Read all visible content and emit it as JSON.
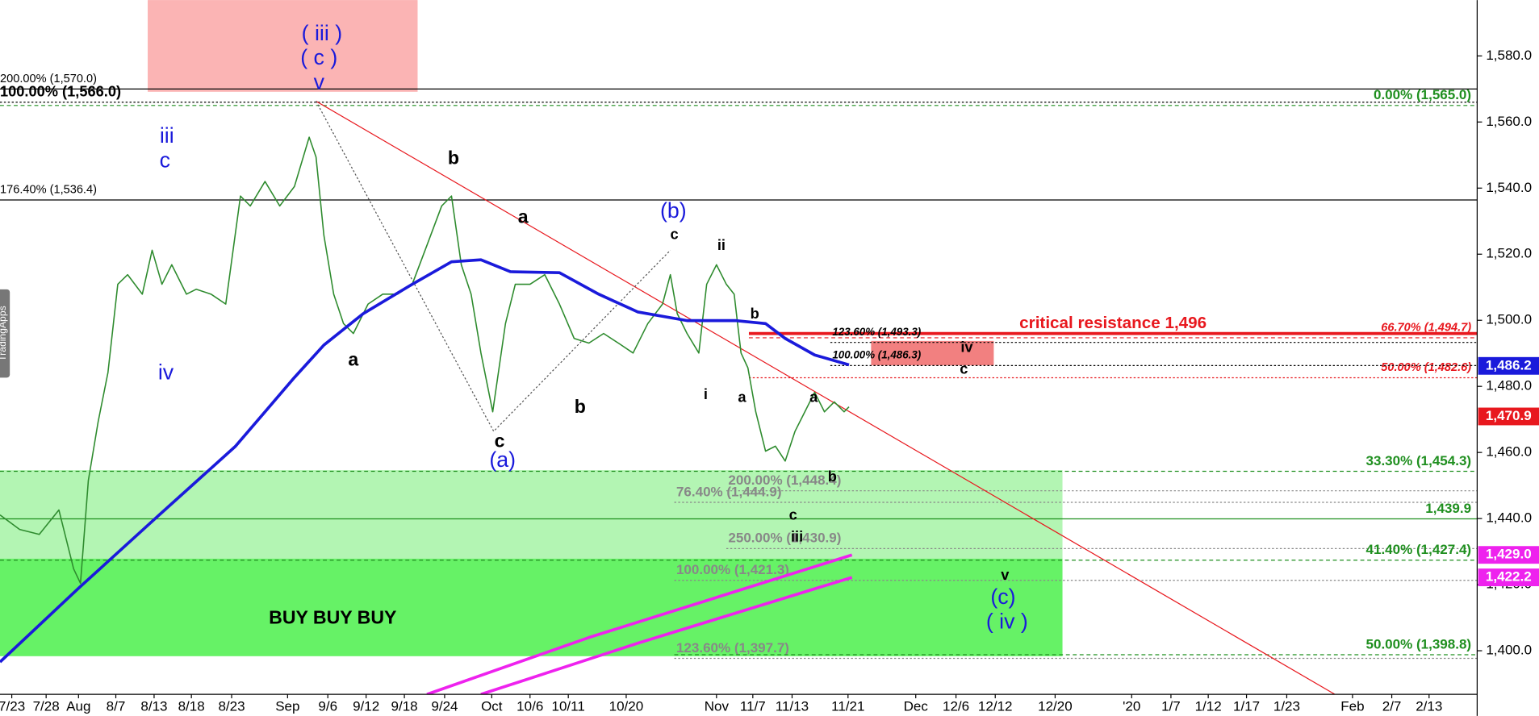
{
  "chart_data": {
    "type": "line",
    "watermark": "TradingApps",
    "xlim": [
      0,
      150.5
    ],
    "ylim": [
      1386.8,
      1596.9
    ],
    "yticks": [
      {
        "value": 1400,
        "label": "1,400.0"
      },
      {
        "value": 1420,
        "label": "1,420.0"
      },
      {
        "value": 1440,
        "label": "1,440.0"
      },
      {
        "value": 1460,
        "label": "1,460.0"
      },
      {
        "value": 1480,
        "label": "1,480.0"
      },
      {
        "value": 1500,
        "label": "1,500.0"
      },
      {
        "value": 1520,
        "label": "1,520.0"
      },
      {
        "value": 1540,
        "label": "1,540.0"
      },
      {
        "value": 1560,
        "label": "1,560.0"
      },
      {
        "value": 1580,
        "label": "1,580.0"
      }
    ],
    "xticks": [
      {
        "value": 1.2,
        "label": "7/23"
      },
      {
        "value": 4.7,
        "label": "7/28"
      },
      {
        "value": 8.0,
        "label": "Aug"
      },
      {
        "value": 11.8,
        "label": "8/7"
      },
      {
        "value": 15.7,
        "label": "8/13"
      },
      {
        "value": 19.5,
        "label": "8/18"
      },
      {
        "value": 23.6,
        "label": "8/23"
      },
      {
        "value": 29.3,
        "label": "Sep"
      },
      {
        "value": 33.4,
        "label": "9/6"
      },
      {
        "value": 37.3,
        "label": "9/12"
      },
      {
        "value": 41.2,
        "label": "9/18"
      },
      {
        "value": 45.3,
        "label": "9/24"
      },
      {
        "value": 50.1,
        "label": "Oct"
      },
      {
        "value": 54.0,
        "label": "10/6"
      },
      {
        "value": 57.9,
        "label": "10/11"
      },
      {
        "value": 63.8,
        "label": "10/20"
      },
      {
        "value": 73.0,
        "label": "Nov"
      },
      {
        "value": 76.7,
        "label": "11/7"
      },
      {
        "value": 80.7,
        "label": "11/13"
      },
      {
        "value": 86.4,
        "label": "11/21"
      },
      {
        "value": 93.3,
        "label": "Dec"
      },
      {
        "value": 97.4,
        "label": "12/6"
      },
      {
        "value": 101.4,
        "label": "12/12"
      },
      {
        "value": 107.5,
        "label": "12/20"
      },
      {
        "value": 115.3,
        "label": "'20"
      },
      {
        "value": 119.3,
        "label": "1/7"
      },
      {
        "value": 123.1,
        "label": "1/12"
      },
      {
        "value": 127.0,
        "label": "1/17"
      },
      {
        "value": 131.1,
        "label": "1/23"
      },
      {
        "value": 137.8,
        "label": "Feb"
      },
      {
        "value": 141.8,
        "label": "2/7"
      },
      {
        "value": 145.6,
        "label": "2/13"
      }
    ],
    "boxes": [
      {
        "x": [
          15.1,
          42.5
        ],
        "y": [
          1569.3,
          1596.9
        ],
        "color": "#fbb4b4"
      },
      {
        "x": [
          0,
          108.2
        ],
        "y": [
          1427.7,
          1454.5
        ],
        "color": "#b3f5b3"
      },
      {
        "x": [
          0,
          108.2
        ],
        "y": [
          1398.5,
          1427.7
        ],
        "color": "#66f266"
      },
      {
        "x": [
          88.8,
          101.2
        ],
        "y": [
          1486.5,
          1493.6
        ],
        "color": "#f28080"
      }
    ],
    "levels": [
      {
        "label": "200.00% (1,570.0)",
        "value": 1570.0,
        "x": [
          0,
          150.5
        ],
        "color": "#000000",
        "line": "solid",
        "label_at": "left",
        "style": "plain"
      },
      {
        "label": "100.00% (1,566.0)",
        "value": 1566.0,
        "x": [
          0,
          150.5
        ],
        "color": "#000000",
        "line": "dotted",
        "label_at": "left",
        "style": "bold"
      },
      {
        "label": "176.40% (1,536.4)",
        "value": 1536.4,
        "x": [
          0,
          150.5
        ],
        "color": "#000000",
        "line": "solid",
        "label_at": "left",
        "style": "plain"
      },
      {
        "label": "0.00% (1,565.0)",
        "value": 1565.0,
        "x": [
          0,
          150.5
        ],
        "color": "#1f8f1f",
        "line": "dashed",
        "label_at": "right",
        "style": "fib"
      },
      {
        "label": "critical resistance 1,496",
        "value": 1496,
        "x": [
          76.3,
          150.5
        ],
        "color": "#e8181e",
        "line": "thick",
        "label_at": "center",
        "style": "critical"
      },
      {
        "label": "66.70% (1,494.7)",
        "value": 1494.7,
        "x": [
          76.3,
          150.5
        ],
        "color": "#e8181e",
        "line": "dashed",
        "label_at": "right",
        "style": "italic"
      },
      {
        "label": "50.00% (1,482.6)",
        "value": 1482.6,
        "x": [
          76.3,
          150.5
        ],
        "color": "#e8181e",
        "line": "dotted",
        "label_at": "right",
        "style": "italic"
      },
      {
        "label": "123.60% (1,493.3)",
        "value": 1493.3,
        "x": [
          84.6,
          150.5
        ],
        "color": "#000000",
        "line": "dotted",
        "label_at": "start",
        "style": "small"
      },
      {
        "label": "100.00% (1,486.3)",
        "value": 1486.3,
        "x": [
          84.6,
          150.5
        ],
        "color": "#000000",
        "line": "dotted",
        "label_at": "start",
        "style": "small"
      },
      {
        "label": "33.30% (1,454.3)",
        "value": 1454.3,
        "x": [
          0,
          150.5
        ],
        "color": "#1f8f1f",
        "line": "dashed",
        "label_at": "right",
        "style": "fib"
      },
      {
        "label": "200.00% (1,448.4)",
        "value": 1448.4,
        "x": [
          74,
          150.5
        ],
        "color": "#888888",
        "line": "dotted",
        "label_at": "start",
        "style": "mid"
      },
      {
        "label": "76.40% (1,444.9)",
        "value": 1444.9,
        "x": [
          68.7,
          150.5
        ],
        "color": "#888888",
        "line": "dotted",
        "label_at": "start",
        "style": "mid"
      },
      {
        "label": "1,439.9",
        "value": 1439.9,
        "x": [
          0,
          150.5
        ],
        "color": "#1f8f1f",
        "line": "solid",
        "label_at": "right",
        "style": "fib"
      },
      {
        "label": "250.00% (1,430.9)",
        "value": 1430.9,
        "x": [
          74,
          150.5
        ],
        "color": "#888888",
        "line": "dotted",
        "label_at": "start",
        "style": "mid"
      },
      {
        "label": "41.40% (1,427.4)",
        "value": 1427.4,
        "x": [
          0,
          150.5
        ],
        "color": "#1f8f1f",
        "line": "dashed",
        "label_at": "right",
        "style": "fib"
      },
      {
        "label": "100.00% (1,421.3)",
        "value": 1421.3,
        "x": [
          68.7,
          150.5
        ],
        "color": "#888888",
        "line": "dotted",
        "label_at": "start",
        "style": "mid"
      },
      {
        "label": "123.60% (1,397.7)",
        "value": 1397.7,
        "x": [
          68.7,
          150.5
        ],
        "color": "#888888",
        "line": "dotted",
        "label_at": "start",
        "style": "mid"
      },
      {
        "label": "50.00% (1,398.8)",
        "value": 1398.8,
        "x": [
          68.7,
          150.5
        ],
        "color": "#1f8f1f",
        "line": "dashed",
        "label_at": "right",
        "style": "fib"
      }
    ],
    "trendlines": [
      {
        "x": [
          32.2,
          136
        ],
        "y": [
          1566.3,
          1386.8
        ],
        "color": "#e8181e",
        "line": "solid"
      },
      {
        "x": [
          32.2,
          50.3,
          68.3
        ],
        "y": [
          1566.3,
          1466.4,
          1521.2
        ],
        "color": "#555555",
        "line": "dotted"
      }
    ],
    "series": [
      {
        "color": "#2e8b2e",
        "width": 1.3,
        "x": [
          0,
          2,
          4,
          6,
          7.5,
          8.2,
          9,
          10,
          11,
          12,
          13,
          14.5,
          15.5,
          16.5,
          17.5,
          19,
          20,
          21.5,
          23,
          24.5,
          25.5,
          27,
          28.5,
          30,
          31.5,
          32.2,
          33,
          34,
          35,
          36,
          37.5,
          39,
          40.5,
          42,
          43.5,
          45,
          46,
          47,
          48,
          49,
          50.2,
          51.5,
          52.5,
          54,
          55.5,
          57,
          58.5,
          60,
          61.5,
          63,
          64.5,
          66,
          67.5,
          68.3,
          69,
          70,
          71.2,
          72,
          73,
          74,
          74.8,
          75.5,
          76.2,
          77,
          78,
          79,
          80,
          81,
          82,
          83,
          84,
          85,
          86,
          86.5
        ],
        "values": [
          1441.1,
          1436.7,
          1435.2,
          1442.6,
          1424.8,
          1420.4,
          1451.5,
          1469.3,
          1484.2,
          1510.9,
          1513.8,
          1507.9,
          1521.2,
          1510.9,
          1516.8,
          1507.9,
          1509.4,
          1507.9,
          1504.9,
          1537.6,
          1534.6,
          1542.0,
          1534.6,
          1540.5,
          1555.4,
          1549.4,
          1525.7,
          1507.9,
          1499.0,
          1496.0,
          1504.9,
          1507.9,
          1507.9,
          1510.9,
          1522.7,
          1534.6,
          1537.6,
          1516.8,
          1507.9,
          1490.1,
          1472.3,
          1499.0,
          1510.9,
          1510.9,
          1513.8,
          1504.9,
          1494.5,
          1493.1,
          1496.0,
          1493.1,
          1490.1,
          1499.0,
          1504.9,
          1513.8,
          1502.0,
          1496.0,
          1490.1,
          1510.9,
          1516.8,
          1510.9,
          1507.9,
          1490.1,
          1485.6,
          1472.3,
          1460.4,
          1461.9,
          1457.4,
          1466.4,
          1472.3,
          1478.2,
          1472.3,
          1475.3,
          1472.3,
          1473.8
        ]
      },
      {
        "color": "#1a1adb",
        "width": 3,
        "x": [
          0,
          8,
          16,
          24,
          30,
          33,
          37,
          42,
          46,
          49,
          52,
          57,
          61,
          65,
          70,
          75,
          78,
          80,
          83,
          86.5
        ],
        "values": [
          1396.6,
          1418.9,
          1440.5,
          1461.9,
          1482.7,
          1492.5,
          1502.0,
          1510.9,
          1517.7,
          1518.3,
          1514.7,
          1514.4,
          1507.9,
          1502.5,
          1499.9,
          1499.9,
          1499.0,
          1494.5,
          1489.5,
          1486.5
        ]
      },
      {
        "color": "#ee22ee",
        "width": 3,
        "x": [
          43.5,
          60,
          86.8
        ],
        "values": [
          1386.8,
          1404.0,
          1429.0
        ]
      },
      {
        "color": "#ee22ee",
        "width": 3,
        "x": [
          49,
          65,
          86.8
        ],
        "values": [
          1386.8,
          1402.3,
          1422.2
        ]
      }
    ],
    "markers": [
      {
        "value": 1486.2,
        "label": "1,486.2",
        "color": "#1a1adb"
      },
      {
        "value": 1470.9,
        "label": "1,470.9",
        "color": "#e8181e"
      },
      {
        "value": 1429.0,
        "label": "1,429.0",
        "color": "#ee22ee"
      },
      {
        "value": 1422.2,
        "label": "1,422.2",
        "color": "#ee22ee"
      }
    ],
    "annotations": [
      {
        "text": "( iii )",
        "x": 32.8,
        "y": 1586.5,
        "color": "#1a1adb",
        "size": "wave"
      },
      {
        "text": "( c )",
        "x": 32.5,
        "y": 1579.1,
        "color": "#1a1adb",
        "size": "wave"
      },
      {
        "text": "v",
        "x": 32.5,
        "y": 1571.7,
        "color": "#1a1adb",
        "size": "wave"
      },
      {
        "text": "iii",
        "x": 17.0,
        "y": 1555.4,
        "color": "#1a1adb",
        "size": "wave"
      },
      {
        "text": "c",
        "x": 16.8,
        "y": 1548.0,
        "color": "#1a1adb",
        "size": "wave"
      },
      {
        "text": "iv",
        "x": 16.9,
        "y": 1483.9,
        "color": "#1a1adb",
        "size": "wave"
      },
      {
        "text": "b",
        "x": 46.2,
        "y": 1548.8,
        "color": "#000000",
        "size": "letter"
      },
      {
        "text": "a",
        "x": 36.0,
        "y": 1487.7,
        "color": "#000000",
        "size": "letter"
      },
      {
        "text": "a",
        "x": 53.3,
        "y": 1531.0,
        "color": "#000000",
        "size": "letter"
      },
      {
        "text": "b",
        "x": 59.1,
        "y": 1473.5,
        "color": "#000000",
        "size": "letter"
      },
      {
        "text": "c",
        "x": 50.9,
        "y": 1463.1,
        "color": "#000000",
        "size": "letter"
      },
      {
        "text": "(a)",
        "x": 51.2,
        "y": 1457.4,
        "color": "#1a1adb",
        "size": "wave"
      },
      {
        "text": "(b)",
        "x": 68.6,
        "y": 1532.8,
        "color": "#1a1adb",
        "size": "wave"
      },
      {
        "text": "c",
        "x": 68.7,
        "y": 1525.7,
        "color": "#000000",
        "size": "minor"
      },
      {
        "text": "ii",
        "x": 73.5,
        "y": 1522.4,
        "color": "#000000",
        "size": "minor"
      },
      {
        "text": "i",
        "x": 71.9,
        "y": 1477.3,
        "color": "#000000",
        "size": "minor"
      },
      {
        "text": "b",
        "x": 76.9,
        "y": 1501.7,
        "color": "#000000",
        "size": "minor"
      },
      {
        "text": "a",
        "x": 75.6,
        "y": 1476.4,
        "color": "#000000",
        "size": "minor"
      },
      {
        "text": "a",
        "x": 82.9,
        "y": 1476.4,
        "color": "#000000",
        "size": "minor"
      },
      {
        "text": "b",
        "x": 84.8,
        "y": 1452.4,
        "color": "#000000",
        "size": "minor"
      },
      {
        "text": "c",
        "x": 80.8,
        "y": 1440.8,
        "color": "#000000",
        "size": "minor"
      },
      {
        "text": "iii",
        "x": 81.2,
        "y": 1434.3,
        "color": "#000000",
        "size": "minor"
      },
      {
        "text": "iv",
        "x": 98.5,
        "y": 1491.6,
        "color": "#000000",
        "size": "minor"
      },
      {
        "text": "c",
        "x": 98.2,
        "y": 1485.0,
        "color": "#000000",
        "size": "minor"
      },
      {
        "text": "v",
        "x": 102.4,
        "y": 1422.7,
        "color": "#000000",
        "size": "minor"
      },
      {
        "text": "(c)",
        "x": 102.2,
        "y": 1415.9,
        "color": "#1a1adb",
        "size": "wave"
      },
      {
        "text": "( iv )",
        "x": 102.6,
        "y": 1408.5,
        "color": "#1a1adb",
        "size": "wave"
      },
      {
        "text": "BUY BUY BUY",
        "x": 33.9,
        "y": 1409.7,
        "color": "#000000",
        "size": "letter"
      }
    ]
  }
}
